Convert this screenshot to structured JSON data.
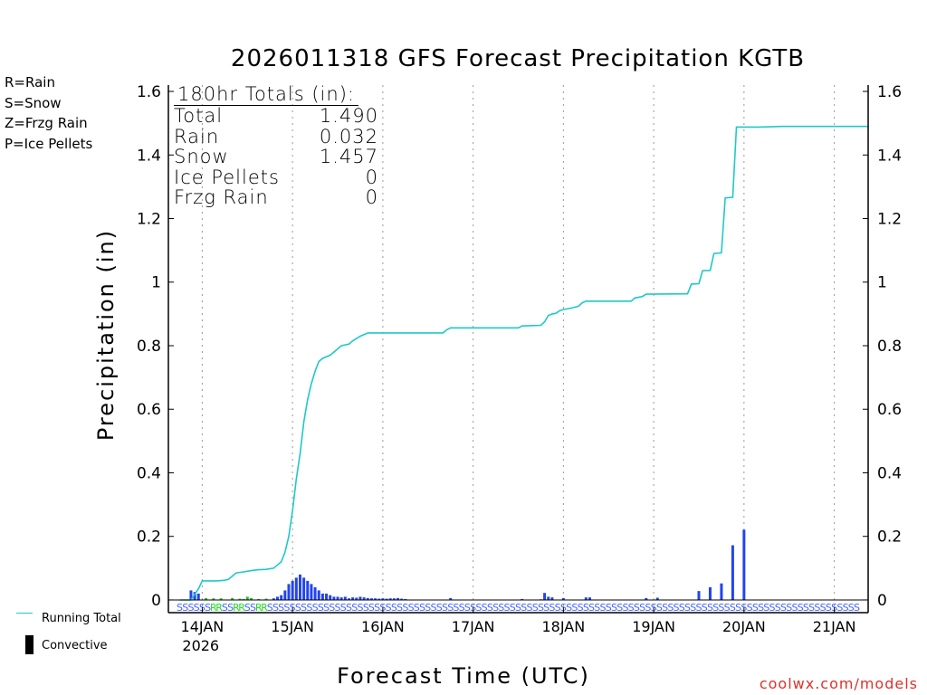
{
  "title": "2026011318 GFS Forecast Precipitation KGTB",
  "precip_type_legend": [
    {
      "label": "R=Rain",
      "color": "#22dd22"
    },
    {
      "label": "S=Snow",
      "color": "#4466ff"
    },
    {
      "label": "Z=Frzg Rain",
      "color": "#ff8c33"
    },
    {
      "label": "P=Ice Pellets",
      "color": "#ff2aa8"
    }
  ],
  "totals_box": {
    "header": "180hr Totals (in):",
    "rows": [
      {
        "label": "Total",
        "value": "1.490"
      },
      {
        "label": "Rain",
        "value": "0.032"
      },
      {
        "label": "Snow",
        "value": "1.457"
      },
      {
        "label": "Ice Pellets",
        "value": "0"
      },
      {
        "label": "Frzg Rain",
        "value": "0"
      }
    ]
  },
  "bottom_legend": {
    "running_total": "Running Total",
    "convective": "Convective"
  },
  "credit": "coolwx.com/models",
  "colors": {
    "running_total": "#20c8c8",
    "snow_bar": "#2244ee",
    "rain_bar": "#22bb22",
    "snow_marker": "#4466ff",
    "rain_marker": "#22dd22",
    "grid": "#999999"
  },
  "chart_data": {
    "type": "bar+line",
    "title": "2026011318 GFS Forecast Precipitation KGTB",
    "xlabel": "Forecast Time (UTC)",
    "ylabel": "Precipitation (in)",
    "ylim": [
      -0.04,
      1.62
    ],
    "xlim_hours": [
      -3,
      183
    ],
    "yticks": [
      0,
      0.2,
      0.4,
      0.6,
      0.8,
      1,
      1.2,
      1.4,
      1.6
    ],
    "ytick_labels": [
      "0",
      "0.2",
      "0.4",
      "0.6",
      "0.8",
      "1",
      "1.2",
      "1.4",
      "1.6"
    ],
    "xticks": [
      {
        "hour": 6,
        "label": "14JAN",
        "sub": "2026"
      },
      {
        "hour": 30,
        "label": "15JAN"
      },
      {
        "hour": 54,
        "label": "16JAN"
      },
      {
        "hour": 78,
        "label": "17JAN"
      },
      {
        "hour": 102,
        "label": "18JAN"
      },
      {
        "hour": 126,
        "label": "19JAN"
      },
      {
        "hour": 150,
        "label": "20JAN"
      },
      {
        "hour": 174,
        "label": "21JAN"
      }
    ],
    "grid": "vertical dotted at each day",
    "series": [
      {
        "name": "Running Total",
        "type": "line",
        "points": [
          [
            0,
            0
          ],
          [
            3,
            0
          ],
          [
            5,
            0.035
          ],
          [
            6,
            0.06
          ],
          [
            10,
            0.06
          ],
          [
            12,
            0.062
          ],
          [
            13,
            0.065
          ],
          [
            14,
            0.075
          ],
          [
            15,
            0.085
          ],
          [
            17,
            0.088
          ],
          [
            19,
            0.092
          ],
          [
            21,
            0.095
          ],
          [
            23,
            0.096
          ],
          [
            25,
            0.1
          ],
          [
            26,
            0.11
          ],
          [
            27,
            0.12
          ],
          [
            28,
            0.15
          ],
          [
            29,
            0.2
          ],
          [
            30,
            0.28
          ],
          [
            31,
            0.38
          ],
          [
            32,
            0.46
          ],
          [
            33,
            0.56
          ],
          [
            34,
            0.63
          ],
          [
            35,
            0.68
          ],
          [
            36,
            0.72
          ],
          [
            37,
            0.75
          ],
          [
            38,
            0.76
          ],
          [
            40,
            0.77
          ],
          [
            41,
            0.78
          ],
          [
            42,
            0.79
          ],
          [
            43,
            0.8
          ],
          [
            45,
            0.805
          ],
          [
            46,
            0.815
          ],
          [
            48,
            0.83
          ],
          [
            50,
            0.84
          ],
          [
            70,
            0.84
          ],
          [
            71,
            0.85
          ],
          [
            72,
            0.856
          ],
          [
            90,
            0.856
          ],
          [
            91,
            0.862
          ],
          [
            96,
            0.864
          ],
          [
            97,
            0.875
          ],
          [
            98,
            0.895
          ],
          [
            99,
            0.9
          ],
          [
            100,
            0.902
          ],
          [
            101,
            0.91
          ],
          [
            102,
            0.914
          ],
          [
            104,
            0.918
          ],
          [
            106,
            0.924
          ],
          [
            107,
            0.935
          ],
          [
            108,
            0.94
          ],
          [
            120,
            0.94
          ],
          [
            121,
            0.95
          ],
          [
            123,
            0.955
          ],
          [
            124,
            0.962
          ],
          [
            135,
            0.963
          ],
          [
            136,
            0.994
          ],
          [
            138,
            0.995
          ],
          [
            139,
            1.036
          ],
          [
            141,
            1.037
          ],
          [
            142,
            1.09
          ],
          [
            144,
            1.092
          ],
          [
            145,
            1.265
          ],
          [
            147,
            1.267
          ],
          [
            148,
            1.488
          ],
          [
            154,
            1.488
          ],
          [
            160,
            1.49
          ],
          [
            183,
            1.49
          ]
        ]
      },
      {
        "name": "Snow",
        "type": "bar",
        "bars": [
          [
            3,
            0.03
          ],
          [
            4,
            0.025
          ],
          [
            5,
            0.02
          ],
          [
            25,
            0.005
          ],
          [
            26,
            0.01
          ],
          [
            27,
            0.015
          ],
          [
            28,
            0.03
          ],
          [
            29,
            0.05
          ],
          [
            30,
            0.06
          ],
          [
            31,
            0.07
          ],
          [
            32,
            0.08
          ],
          [
            33,
            0.07
          ],
          [
            34,
            0.06
          ],
          [
            35,
            0.05
          ],
          [
            36,
            0.04
          ],
          [
            37,
            0.03
          ],
          [
            38,
            0.02
          ],
          [
            39,
            0.02
          ],
          [
            40,
            0.015
          ],
          [
            41,
            0.01
          ],
          [
            42,
            0.01
          ],
          [
            43,
            0.008
          ],
          [
            44,
            0.01
          ],
          [
            45,
            0.005
          ],
          [
            46,
            0.008
          ],
          [
            47,
            0.007
          ],
          [
            48,
            0.01
          ],
          [
            49,
            0.008
          ],
          [
            50,
            0.006
          ],
          [
            51,
            0.005
          ],
          [
            52,
            0.005
          ],
          [
            53,
            0.004
          ],
          [
            54,
            0.005
          ],
          [
            55,
            0.004
          ],
          [
            56,
            0.005
          ],
          [
            57,
            0.005
          ],
          [
            58,
            0.006
          ],
          [
            59,
            0.004
          ],
          [
            60,
            0.003
          ],
          [
            72,
            0.006
          ],
          [
            91,
            0.003
          ],
          [
            96,
            0.002
          ],
          [
            97,
            0.022
          ],
          [
            98,
            0.01
          ],
          [
            99,
            0.008
          ],
          [
            102,
            0.006
          ],
          [
            108,
            0.008
          ],
          [
            109,
            0.008
          ],
          [
            124,
            0.006
          ],
          [
            127,
            0.007
          ],
          [
            138,
            0.028
          ],
          [
            141,
            0.04
          ],
          [
            144,
            0.052
          ],
          [
            147,
            0.172
          ],
          [
            150,
            0.221
          ]
        ]
      },
      {
        "name": "Rain",
        "type": "bar",
        "bars": [
          [
            7,
            0.006
          ],
          [
            9,
            0.005
          ],
          [
            11,
            0.005
          ],
          [
            14,
            0.006
          ],
          [
            16,
            0.004
          ],
          [
            17,
            0.003
          ],
          [
            18,
            0.01
          ],
          [
            19,
            0.006
          ],
          [
            21,
            0.003
          ],
          [
            23,
            0.004
          ]
        ]
      }
    ],
    "precip_type_markers": [
      {
        "type": "snow",
        "label": "S",
        "hours_start": 0,
        "hours_end": 180
      },
      {
        "type": "rain",
        "label": "R",
        "hours_start": 7,
        "hours_end": 24
      }
    ]
  }
}
